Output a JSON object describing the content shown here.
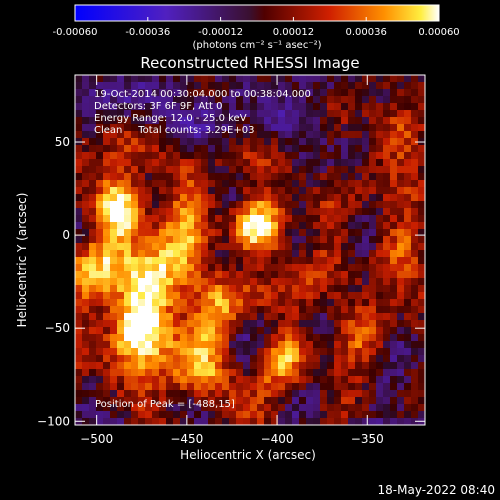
{
  "chart_data": {
    "type": "heatmap",
    "title": "Reconstructed RHESSI Image",
    "xlabel": "Heliocentric X (arcsec)",
    "ylabel": "Heliocentric Y (arcsec)",
    "xlim": [
      -512,
      -318
    ],
    "ylim": [
      -102,
      86
    ],
    "x_ticks": [
      -500,
      -450,
      -400,
      -350
    ],
    "y_ticks": [
      -100,
      -50,
      0,
      50
    ],
    "colorbar": {
      "ticks": [
        "-0.00060",
        "-0.00036",
        "-0.00012",
        "0.00012",
        "0.00036",
        "0.00060"
      ],
      "range": [
        -0.0006,
        0.0006
      ],
      "units": "(photons cm⁻² s⁻¹ asec⁻²)"
    },
    "annotations": [
      "19-Oct-2014 00:30:04.000 to 00:38:04.000",
      "Detectors: 3F 6F 9F, Att 0",
      "Energy Range: 12.0 - 25.0 keV",
      "Clean     Total counts: 3.29E+03"
    ],
    "peak_label": "Position of Peak = [-488,15]",
    "sources": [
      {
        "x": -412,
        "y": 5,
        "peak": 0.00052
      },
      {
        "x": -488,
        "y": 15,
        "peak": 0.0006
      },
      {
        "x": -478,
        "y": -48,
        "peak": 0.00055
      },
      {
        "x": -468,
        "y": -30,
        "peak": 0.0004
      },
      {
        "x": -440,
        "y": -78,
        "peak": 0.00032
      },
      {
        "x": -395,
        "y": -65,
        "peak": 0.00028
      },
      {
        "x": -330,
        "y": -5,
        "peak": 0.0003
      },
      {
        "x": -330,
        "y": 55,
        "peak": 0.00032
      },
      {
        "x": -350,
        "y": -55,
        "peak": 0.00022
      }
    ],
    "grid": false,
    "colormap": "blue-purple-red-yellow-white"
  },
  "footer": {
    "date": "18-May-2022 08:40"
  }
}
